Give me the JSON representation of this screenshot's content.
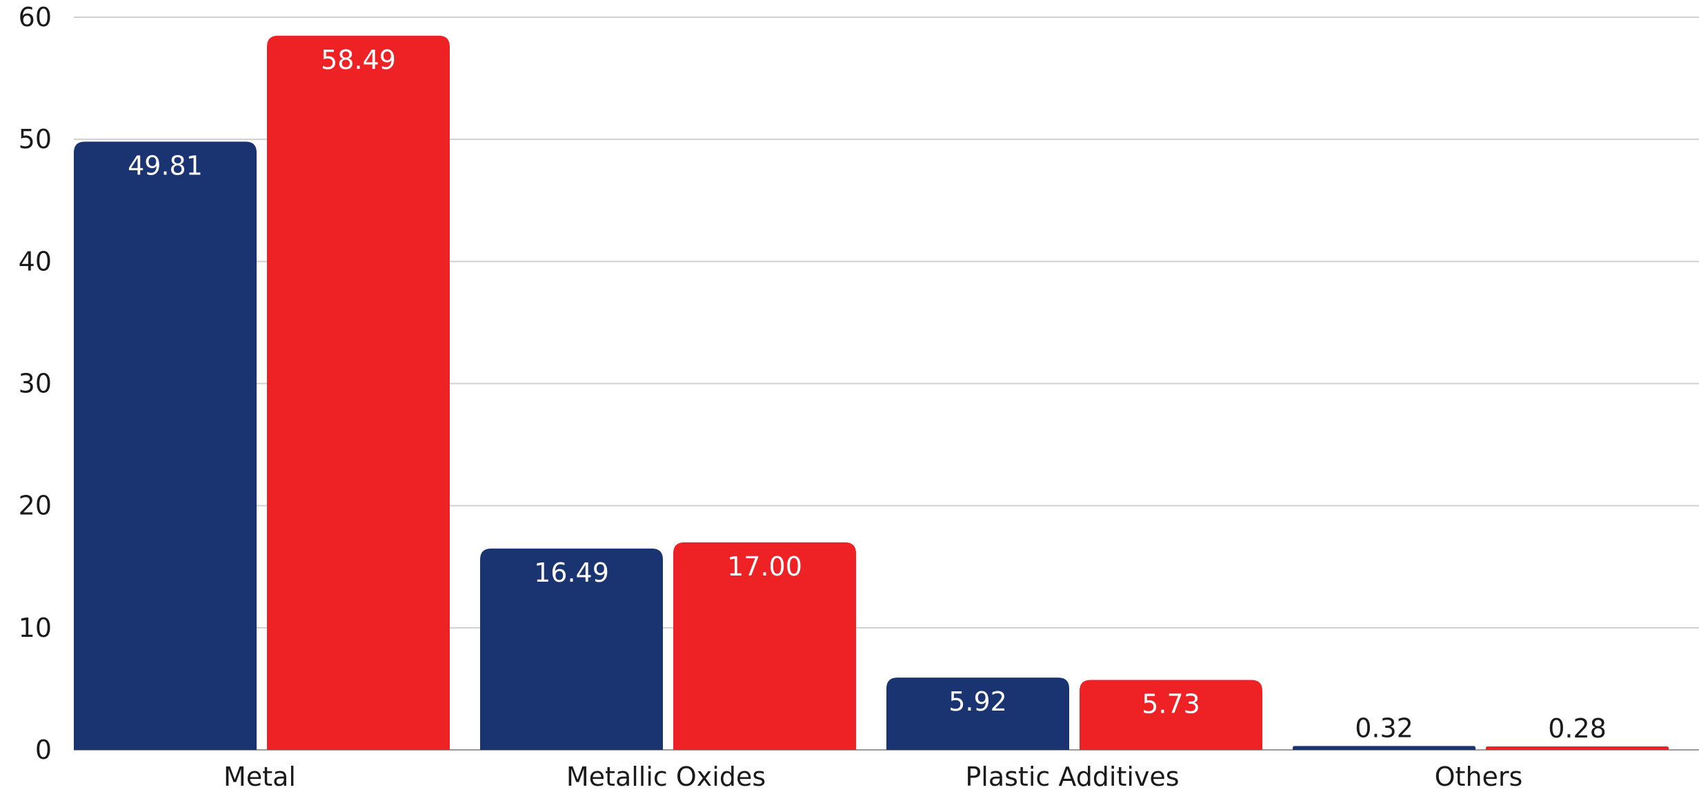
{
  "chart_data": {
    "type": "bar",
    "categories": [
      "Metal",
      "Metallic Oxides",
      "Plastic Additives",
      "Others"
    ],
    "series": [
      {
        "values": [
          49.81,
          16.49,
          5.92,
          0.32
        ],
        "labels": [
          "49.81",
          "16.49",
          "5.92",
          "0.32"
        ],
        "color": "#1a3472"
      },
      {
        "values": [
          58.49,
          17.0,
          5.73,
          0.28
        ],
        "labels": [
          "58.49",
          "17.00",
          "5.73",
          "0.28"
        ],
        "color": "#ee2225"
      }
    ],
    "title": "",
    "xlabel": "",
    "ylabel": "",
    "ylim": [
      0,
      60
    ],
    "yticks": [
      "0",
      "10",
      "20",
      "30",
      "40",
      "50",
      "60"
    ],
    "grid": true,
    "legend": "none"
  }
}
